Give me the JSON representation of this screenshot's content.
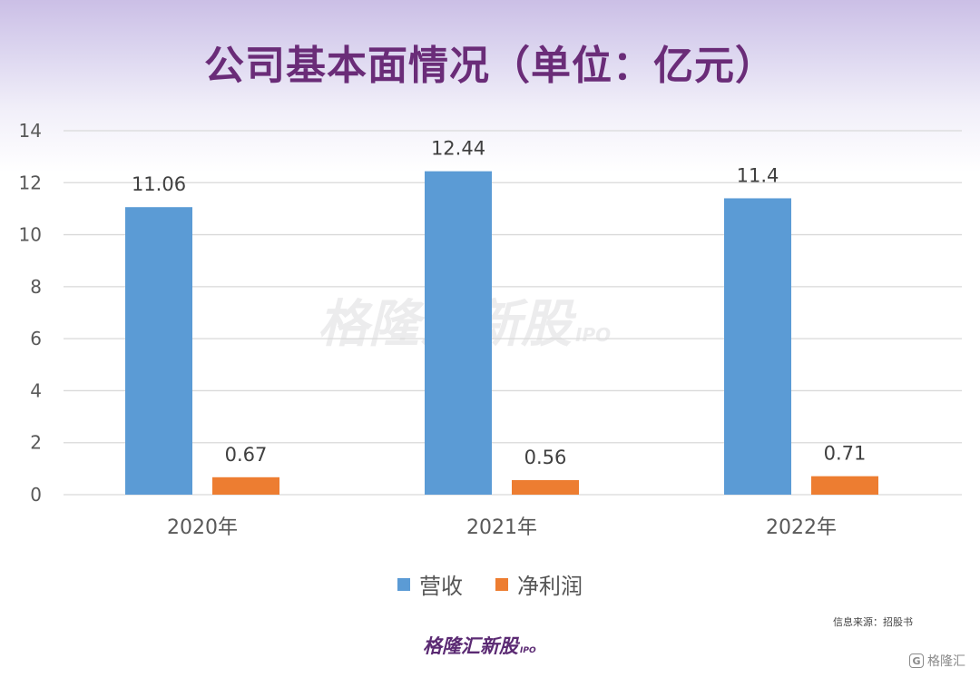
{
  "title": "公司基本面情况（单位：亿元）",
  "chart_data": {
    "type": "bar",
    "categories": [
      "2020年",
      "2021年",
      "2022年"
    ],
    "series": [
      {
        "name": "营收",
        "values": [
          11.06,
          12.44,
          11.4
        ],
        "labels": [
          "11.06",
          "12.44",
          "11.4"
        ],
        "color": "#5b9bd5"
      },
      {
        "name": "净利润",
        "values": [
          0.67,
          0.56,
          0.71
        ],
        "labels": [
          "0.67",
          "0.56",
          "0.71"
        ],
        "color": "#ed7d31"
      }
    ],
    "ylim": [
      0,
      14
    ],
    "yticks": [
      "0",
      "2",
      "4",
      "6",
      "8",
      "10",
      "12",
      "14"
    ],
    "grid": true,
    "legend": "bottom"
  },
  "source": "信息来源：招股书",
  "brand": {
    "name": "格隆汇新股",
    "sub": "IPO"
  },
  "watermark": {
    "name": "格隆汇新股",
    "sub": "IPO"
  },
  "corner_logo": {
    "icon": "G",
    "text": "格隆汇"
  }
}
